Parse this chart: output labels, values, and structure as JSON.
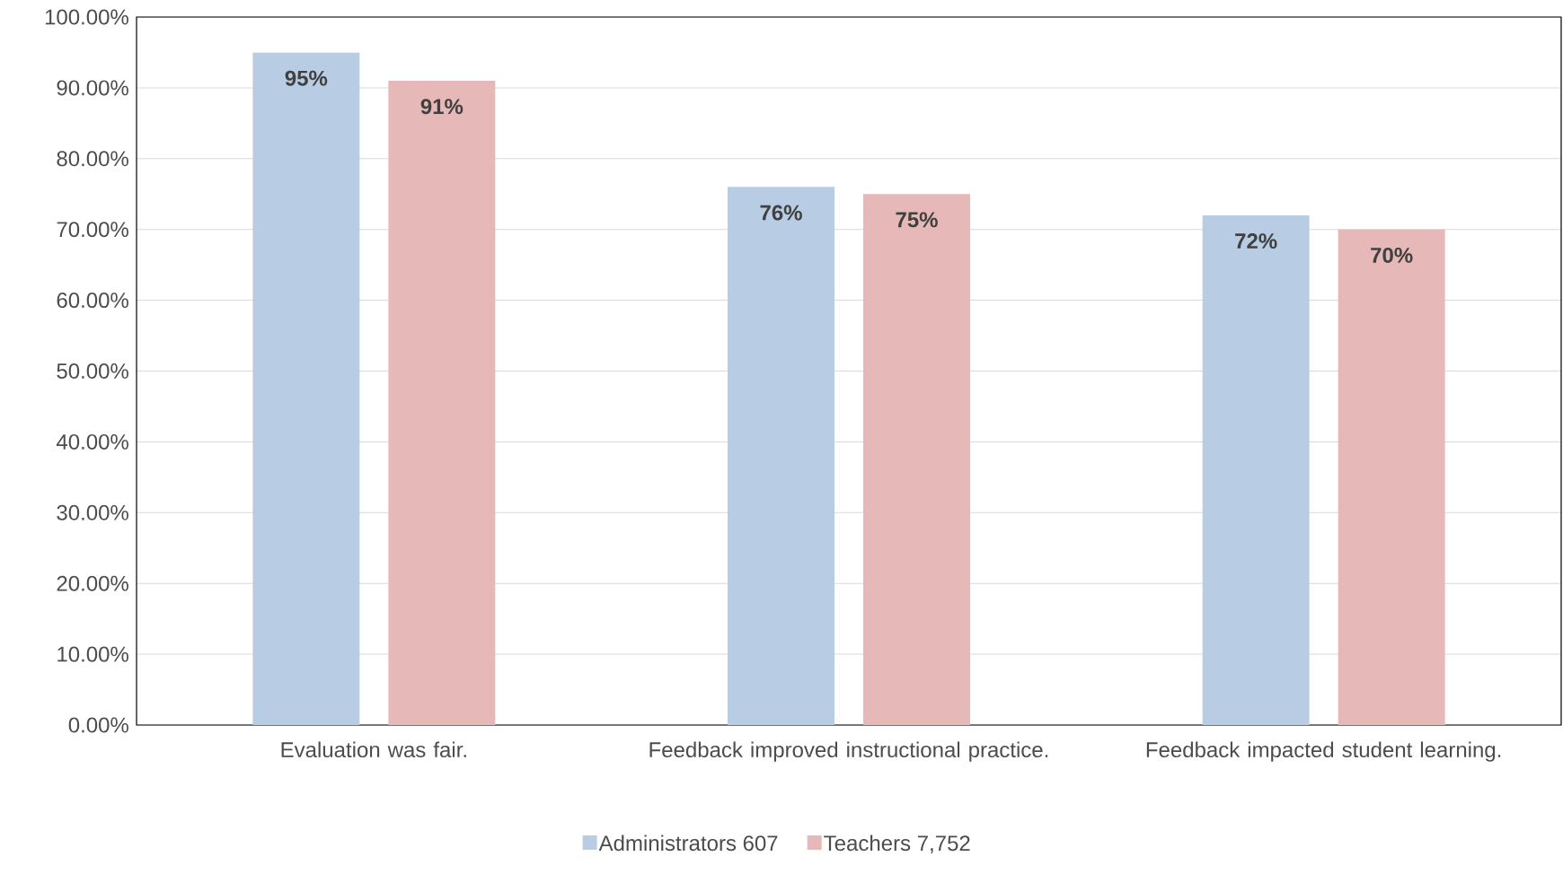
{
  "chart_data": {
    "type": "bar",
    "categories": [
      "Evaluation was fair.",
      "Feedback improved instructional practice.",
      "Feedback impacted student learning."
    ],
    "series": [
      {
        "name": "Administrators 607",
        "color": "#b8cce4",
        "values": [
          95,
          76,
          72
        ],
        "value_labels": [
          "95%",
          "76%",
          "72%"
        ]
      },
      {
        "name": "Teachers 7,752",
        "color": "#e6b9b8",
        "values": [
          91,
          75,
          70
        ],
        "value_labels": [
          "91%",
          "75%",
          "70%"
        ]
      }
    ],
    "ylim": [
      0,
      100
    ],
    "yticks": [
      {
        "value": 0,
        "label": "0.00%"
      },
      {
        "value": 10,
        "label": "10.00%"
      },
      {
        "value": 20,
        "label": "20.00%"
      },
      {
        "value": 30,
        "label": "30.00%"
      },
      {
        "value": 40,
        "label": "40.00%"
      },
      {
        "value": 50,
        "label": "50.00%"
      },
      {
        "value": 60,
        "label": "60.00%"
      },
      {
        "value": 70,
        "label": "70.00%"
      },
      {
        "value": 80,
        "label": "80.00%"
      },
      {
        "value": 90,
        "label": "90.00%"
      },
      {
        "value": 100,
        "label": "100.00%"
      }
    ],
    "grid": "y",
    "legend": "bottom"
  }
}
